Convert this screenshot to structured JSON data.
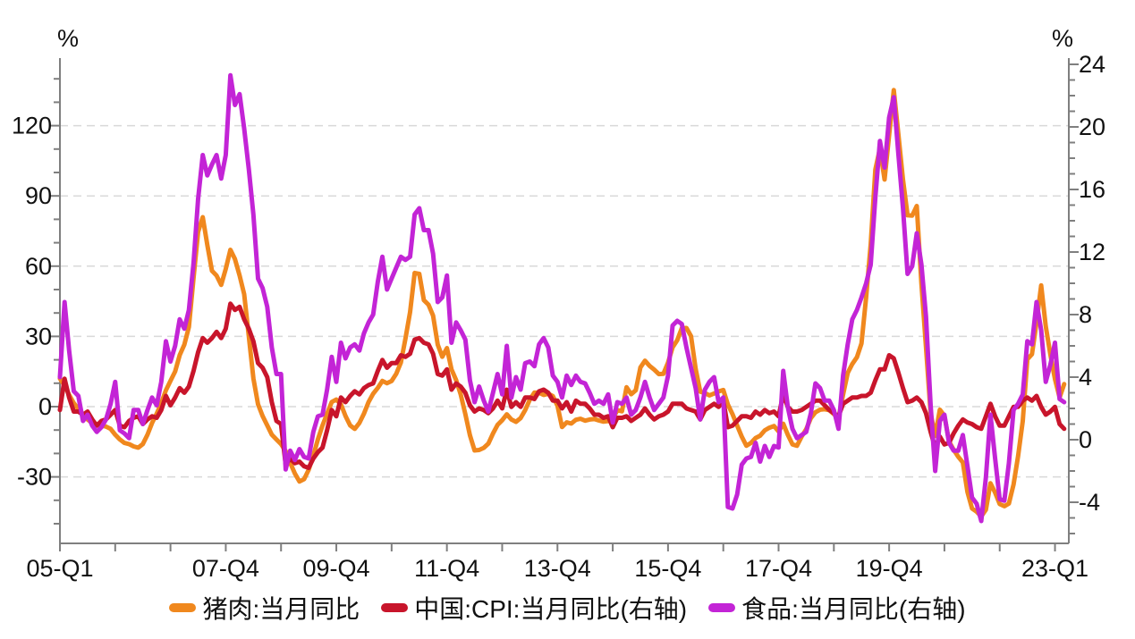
{
  "chart": {
    "left_axis": {
      "unit": "%",
      "major_ticks": [
        120,
        90,
        60,
        30,
        0,
        -30
      ],
      "minor_step": 10
    },
    "right_axis": {
      "unit": "%",
      "major_ticks": [
        24,
        20,
        16,
        12,
        8,
        4,
        0,
        -4
      ],
      "minor_step": 1
    },
    "x_axis": {
      "labels": [
        {
          "text": "05-Q1",
          "year": 2005
        },
        {
          "text": "07-Q4",
          "year": 2008
        },
        {
          "text": "09-Q4",
          "year": 2010
        },
        {
          "text": "11-Q4",
          "year": 2012
        },
        {
          "text": "13-Q4",
          "year": 2014
        },
        {
          "text": "15-Q4",
          "year": 2016
        },
        {
          "text": "17-Q4",
          "year": 2018
        },
        {
          "text": "19-Q4",
          "year": 2020
        },
        {
          "text": "23-Q1",
          "year": 2023
        }
      ]
    },
    "colors": {
      "grid": "#d9d9d9",
      "axis": "#7f7f7f",
      "text": "#111111"
    }
  },
  "chart_data": {
    "type": "line",
    "frequency": "monthly",
    "x_start": "2005-01",
    "x_end": "2023-03",
    "title": "",
    "xlabel": "",
    "left_ylim": [
      -58,
      149
    ],
    "right_ylim": [
      -6.6,
      24.4
    ],
    "legend_position": "bottom-center",
    "grid": "horizontal-dashed",
    "series": [
      {
        "id": "pork",
        "name": "猪肉:当月同比",
        "axis": "left",
        "color": "#F0881E",
        "values": [
          12.0,
          9.0,
          5.0,
          1.5,
          -1.0,
          -3.5,
          -5.5,
          -7.0,
          -7.5,
          -8.0,
          -8.5,
          -9.5,
          -12.0,
          -14.0,
          -15.5,
          -16.0,
          -17.0,
          -17.5,
          -16.0,
          -12.0,
          -7.0,
          -3.0,
          1.5,
          7.0,
          11.0,
          15.0,
          22.0,
          26.5,
          34.0,
          55.0,
          74.6,
          80.9,
          69.0,
          58.0,
          56.0,
          52.0,
          58.8,
          67.0,
          63.0,
          56.0,
          48.0,
          30.0,
          12.1,
          1.0,
          -4.0,
          -8.0,
          -12.0,
          -14.0,
          -16.0,
          -19.0,
          -24.0,
          -28.6,
          -32.0,
          -31.0,
          -27.0,
          -21.0,
          -14.0,
          -8.0,
          -3.0,
          2.0,
          3.0,
          1.0,
          -4.0,
          -8.0,
          -9.5,
          -7.0,
          -3.0,
          2.0,
          5.5,
          8.0,
          11.0,
          10.0,
          10.9,
          14.0,
          18.8,
          29.0,
          40.4,
          57.1,
          56.7,
          45.5,
          43.5,
          38.9,
          26.5,
          21.3,
          25.0,
          15.9,
          11.3,
          5.2,
          -3.2,
          -12.2,
          -18.7,
          -18.5,
          -17.6,
          -15.8,
          -11.5,
          -7.8,
          -5.8,
          -3.3,
          -5.5,
          -6.5,
          -4.9,
          -1.5,
          3.0,
          6.0,
          5.9,
          5.0,
          5.5,
          4.5,
          0.4,
          -8.7,
          -6.7,
          -7.2,
          -5.6,
          -5.2,
          -6.0,
          -5.5,
          -5.3,
          -5.9,
          -6.4,
          -6.2,
          -5.3,
          -1.5,
          -2.0,
          8.3,
          5.3,
          7.0,
          16.7,
          19.6,
          17.4,
          15.8,
          13.9,
          14.0,
          18.8,
          25.3,
          28.4,
          33.5,
          33.6,
          30.1,
          16.1,
          6.4,
          5.8,
          4.8,
          5.6,
          6.5,
          7.1,
          0.9,
          -3.2,
          -8.1,
          -12.8,
          -16.7,
          -15.5,
          -13.4,
          -12.4,
          -10.1,
          -9.0,
          -8.3,
          -10.6,
          -7.3,
          -12.0,
          -16.1,
          -16.7,
          -12.8,
          -9.6,
          -4.9,
          -2.4,
          -1.3,
          -1.1,
          -1.5,
          -3.2,
          -4.8,
          5.1,
          14.4,
          18.2,
          21.1,
          27.0,
          46.7,
          69.3,
          101.3,
          110.2,
          97.0,
          116.0,
          135.2,
          116.4,
          96.9,
          81.7,
          81.6,
          85.7,
          52.6,
          25.5,
          -2.8,
          -12.5,
          -1.3,
          -3.9,
          -14.9,
          -18.4,
          -21.4,
          -23.8,
          -36.5,
          -43.5,
          -44.9,
          -46.9,
          -44.0,
          -32.7,
          -36.7,
          -41.6,
          -42.5,
          -41.4,
          -33.3,
          -21.1,
          -6.2,
          20.2,
          22.4,
          36.0,
          51.8,
          34.4,
          22.2,
          11.8,
          3.9,
          9.6
        ]
      },
      {
        "id": "cpi",
        "name": "中国:CPI:当月同比(右轴)",
        "axis": "right",
        "color": "#C8152B",
        "values": [
          1.9,
          3.9,
          2.7,
          1.8,
          1.8,
          1.6,
          1.8,
          1.3,
          0.9,
          1.2,
          1.3,
          1.6,
          1.9,
          0.9,
          0.8,
          1.2,
          1.4,
          1.5,
          1.0,
          1.3,
          1.5,
          1.4,
          1.9,
          2.8,
          2.2,
          2.7,
          3.3,
          3.0,
          3.4,
          4.4,
          5.6,
          6.5,
          6.2,
          6.5,
          6.9,
          6.5,
          7.1,
          8.7,
          8.3,
          8.5,
          7.7,
          7.1,
          6.3,
          4.9,
          4.6,
          4.0,
          2.4,
          1.2,
          1.0,
          -1.6,
          -1.2,
          -1.5,
          -1.4,
          -1.7,
          -1.8,
          -1.2,
          -0.8,
          -0.5,
          0.6,
          1.9,
          1.5,
          2.7,
          2.4,
          2.8,
          3.1,
          2.9,
          3.3,
          3.5,
          3.6,
          4.4,
          5.1,
          4.6,
          4.9,
          4.9,
          5.4,
          5.3,
          5.5,
          6.4,
          6.5,
          6.2,
          6.1,
          5.5,
          4.2,
          4.1,
          4.5,
          3.2,
          3.6,
          3.4,
          3.0,
          2.2,
          1.8,
          2.0,
          1.9,
          1.7,
          2.0,
          2.5,
          2.0,
          3.2,
          2.1,
          2.4,
          2.1,
          2.7,
          2.7,
          2.6,
          3.1,
          3.2,
          3.0,
          2.5,
          2.5,
          2.0,
          2.4,
          1.8,
          2.5,
          2.3,
          2.3,
          2.0,
          1.6,
          1.6,
          1.4,
          1.5,
          0.8,
          1.4,
          1.4,
          1.5,
          1.2,
          1.4,
          1.6,
          2.0,
          1.6,
          1.3,
          1.5,
          1.6,
          1.8,
          2.3,
          2.3,
          2.3,
          2.0,
          1.9,
          1.8,
          1.3,
          1.9,
          2.1,
          2.3,
          2.1,
          2.5,
          0.8,
          0.9,
          1.2,
          1.5,
          1.5,
          1.4,
          1.8,
          1.6,
          1.9,
          1.7,
          1.8,
          1.5,
          2.9,
          2.1,
          1.8,
          1.8,
          1.9,
          2.1,
          2.3,
          2.5,
          2.5,
          2.2,
          1.9,
          1.7,
          1.5,
          2.3,
          2.5,
          2.7,
          2.7,
          2.8,
          2.8,
          3.0,
          3.8,
          4.5,
          4.5,
          5.4,
          5.2,
          4.3,
          3.3,
          2.4,
          2.5,
          2.7,
          2.4,
          1.7,
          0.5,
          -0.5,
          0.2,
          -0.3,
          -0.2,
          0.4,
          0.9,
          1.3,
          1.1,
          1.0,
          0.8,
          0.7,
          1.5,
          2.3,
          1.5,
          0.9,
          0.9,
          1.5,
          2.1,
          2.1,
          2.5,
          2.7,
          2.5,
          2.8,
          2.1,
          1.6,
          1.8,
          2.1,
          1.0,
          0.7
        ]
      },
      {
        "id": "food",
        "name": "食品:当月同比(右轴)",
        "axis": "right",
        "color": "#C324D6",
        "values": [
          4.0,
          8.8,
          5.7,
          3.1,
          2.8,
          1.2,
          1.6,
          0.9,
          0.5,
          0.8,
          1.3,
          2.3,
          3.7,
          0.6,
          0.4,
          0.1,
          1.9,
          1.9,
          1.0,
          1.9,
          2.7,
          2.2,
          3.7,
          6.3,
          5.0,
          6.0,
          7.7,
          7.1,
          8.3,
          11.3,
          15.4,
          18.2,
          16.9,
          17.6,
          18.2,
          16.7,
          18.2,
          23.3,
          21.4,
          22.1,
          19.9,
          17.3,
          14.4,
          10.3,
          9.7,
          8.5,
          5.9,
          4.2,
          4.2,
          -1.9,
          -0.7,
          -1.3,
          -0.6,
          -1.1,
          -1.2,
          0.5,
          1.5,
          1.6,
          3.2,
          5.3,
          3.7,
          6.2,
          5.2,
          5.9,
          6.1,
          5.7,
          6.8,
          7.5,
          8.0,
          10.1,
          11.7,
          9.6,
          10.3,
          11.0,
          11.7,
          11.5,
          11.7,
          14.4,
          14.8,
          13.4,
          13.4,
          11.9,
          8.8,
          9.1,
          10.5,
          6.2,
          7.5,
          7.0,
          6.4,
          3.8,
          2.4,
          3.4,
          2.5,
          1.8,
          3.0,
          4.2,
          2.9,
          6.0,
          2.7,
          4.0,
          3.2,
          4.9,
          5.0,
          4.7,
          6.1,
          6.5,
          5.9,
          4.1,
          3.7,
          2.7,
          4.1,
          3.5,
          4.1,
          3.7,
          3.6,
          3.0,
          2.3,
          2.5,
          2.3,
          2.9,
          1.1,
          2.4,
          2.3,
          2.7,
          1.6,
          1.9,
          2.7,
          3.7,
          2.7,
          1.9,
          2.3,
          2.7,
          4.1,
          7.3,
          7.6,
          7.4,
          5.9,
          4.6,
          3.3,
          1.3,
          3.2,
          3.7,
          4.0,
          2.4,
          2.7,
          -4.3,
          -4.4,
          -3.5,
          -1.6,
          -1.2,
          -1.1,
          -0.2,
          -1.4,
          -0.4,
          -1.1,
          -0.4,
          -0.5,
          4.4,
          2.1,
          0.7,
          0.1,
          0.3,
          0.5,
          1.7,
          3.6,
          3.3,
          2.5,
          2.5,
          1.9,
          0.7,
          4.1,
          6.1,
          7.7,
          8.3,
          9.1,
          10.0,
          11.2,
          15.5,
          19.1,
          17.4,
          20.6,
          21.9,
          18.3,
          14.8,
          10.6,
          11.1,
          13.2,
          11.2,
          7.9,
          2.2,
          -2.0,
          1.2,
          1.6,
          -0.2,
          -0.7,
          -0.7,
          0.3,
          -1.7,
          -3.7,
          -4.1,
          -5.2,
          -2.4,
          1.6,
          -1.2,
          -3.8,
          -3.9,
          -1.5,
          1.9,
          2.3,
          2.9,
          6.3,
          6.1,
          8.8,
          7.0,
          3.7,
          4.8,
          6.2,
          2.6,
          2.4
        ]
      }
    ]
  },
  "legend": {
    "items": [
      {
        "label": "猪肉:当月同比"
      },
      {
        "label": "中国:CPI:当月同比(右轴)"
      },
      {
        "label": "食品:当月同比(右轴)"
      }
    ]
  }
}
